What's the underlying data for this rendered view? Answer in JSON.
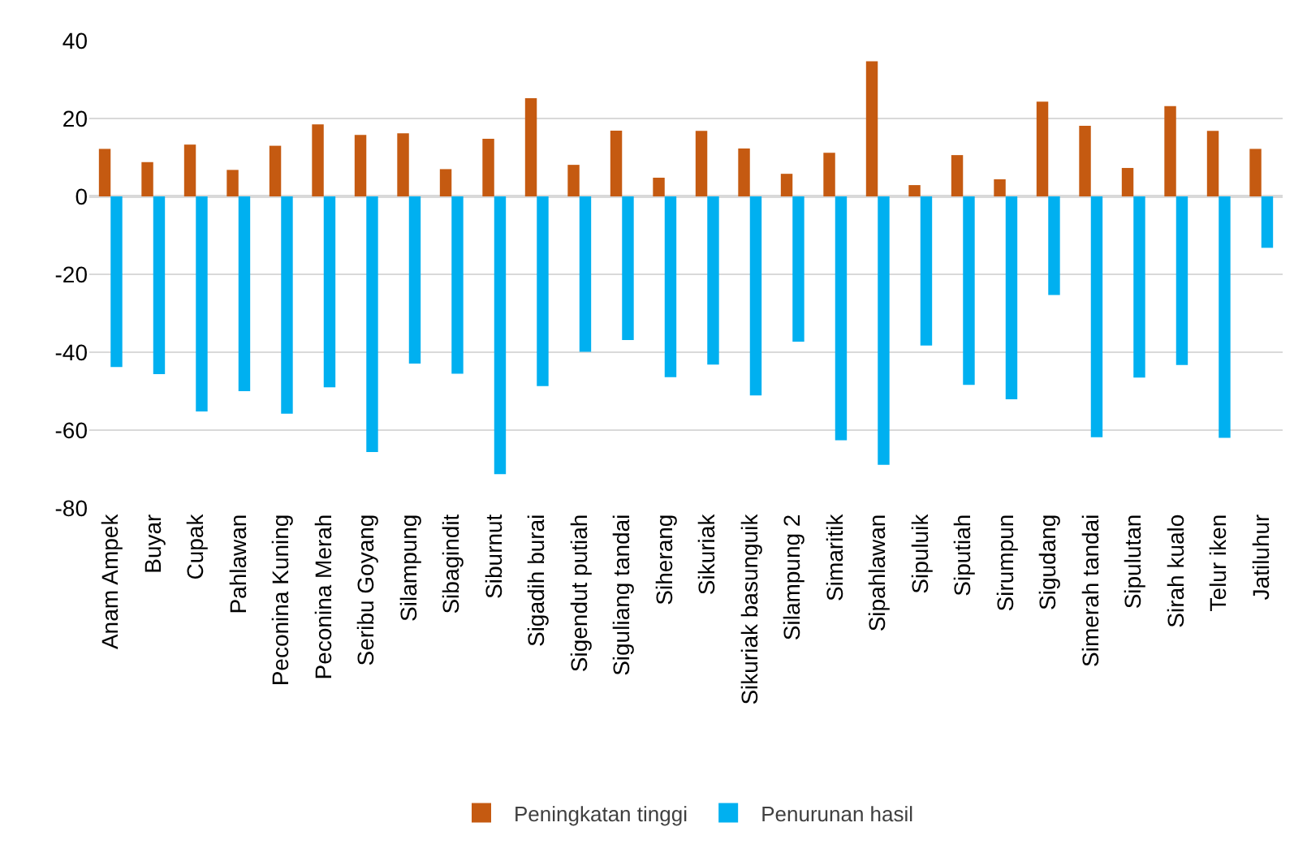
{
  "chart_data": {
    "type": "bar",
    "categories": [
      "Anam Ampek",
      "Buyar",
      "Cupak",
      "Pahlawan",
      "Peconina Kuning",
      "Peconina Merah",
      "Seribu Goyang",
      "Silampung",
      "Sibagindit",
      "Siburnut",
      "Sigadih burai",
      "Sigendut putiah",
      "Siguliang tandai",
      "Siherang",
      "Sikuriak",
      "Sikuriak basunguik",
      "Silampung 2",
      "Simaritik",
      "Sipahlawan",
      "Sipuluik",
      "Siputiah",
      "Sirumpun",
      "Sigudang",
      "Simerah tandai",
      "Sipulutan",
      "Sirah kualo",
      "Telur iken",
      "Jatiluhur"
    ],
    "series": [
      {
        "name": "Peningkatan tinggi",
        "color": "#c55a11",
        "values": [
          12.2,
          8.8,
          13.3,
          6.8,
          13.0,
          18.5,
          15.8,
          16.2,
          7.0,
          14.8,
          25.2,
          8.1,
          16.9,
          4.8,
          16.8,
          12.3,
          5.8,
          11.2,
          34.7,
          2.9,
          10.6,
          4.4,
          24.3,
          18.1,
          7.3,
          23.2,
          16.8,
          12.2
        ]
      },
      {
        "name": "Penurunan hasil",
        "color": "#00b0f0",
        "values": [
          -43.8,
          -45.6,
          -55.2,
          -50.0,
          -55.8,
          -49.0,
          -65.6,
          -42.9,
          -45.5,
          -71.3,
          -48.7,
          -39.9,
          -36.9,
          -46.4,
          -43.2,
          -51.1,
          -37.3,
          -62.6,
          -68.9,
          -38.3,
          -48.4,
          -52.1,
          -25.3,
          -61.8,
          -46.5,
          -43.3,
          -62.0,
          -13.2
        ]
      }
    ],
    "ylim": [
      -80,
      40
    ],
    "yticks": [
      -80,
      -60,
      -40,
      -20,
      0,
      20,
      40
    ],
    "grid": "y",
    "legend": "bottom"
  }
}
